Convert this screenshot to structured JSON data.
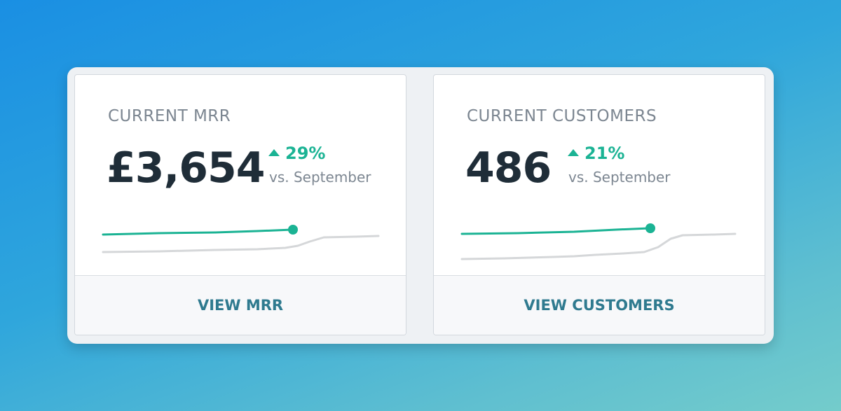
{
  "cards": [
    {
      "label": "CURRENT MRR",
      "value": "£3,654",
      "change": "29%",
      "comparison": "vs. September",
      "action": "VIEW MRR"
    },
    {
      "label": "CURRENT CUSTOMERS",
      "value": "486",
      "change": "21%",
      "comparison": "vs. September",
      "action": "VIEW CUSTOMERS"
    }
  ],
  "colors": {
    "positive": "#1bb394",
    "previous_series": "#d5d7d9",
    "action_text": "#2f7a8f"
  },
  "icons": [
    "trend-up-icon"
  ]
}
